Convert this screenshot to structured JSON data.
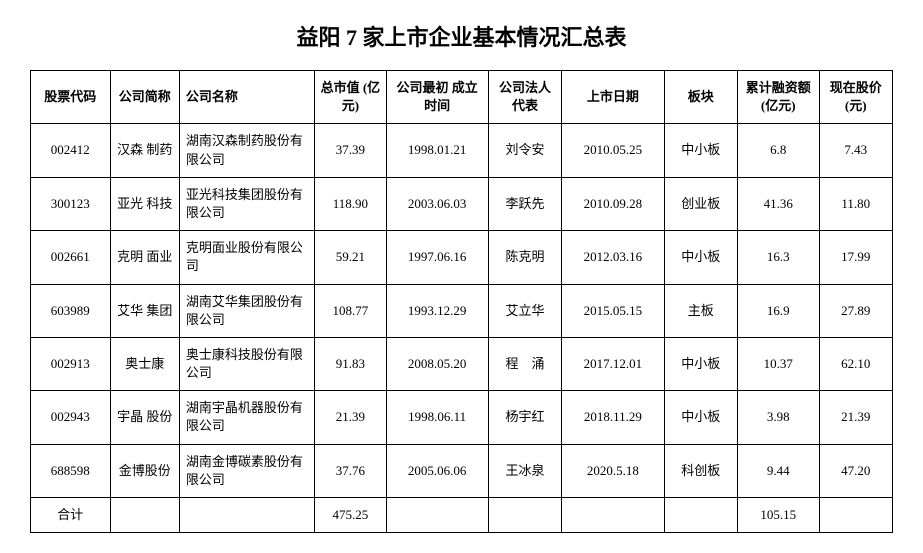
{
  "title": "益阳 7 家上市企业基本情况汇总表",
  "columns": [
    "股票代码",
    "公司简称",
    "公司名称",
    "总市值 (亿元)",
    "公司最初 成立时间",
    "公司法人 代表",
    "上市日期",
    "板块",
    "累计融资额 (亿元)",
    "现在股价 (元)"
  ],
  "rows": [
    [
      "002412",
      "汉森 制药",
      "湖南汉森制药股份有限公司",
      "37.39",
      "1998.01.21",
      "刘令安",
      "2010.05.25",
      "中小板",
      "6.8",
      "7.43"
    ],
    [
      "300123",
      "亚光 科技",
      "亚光科技集团股份有限公司",
      "118.90",
      "2003.06.03",
      "李跃先",
      "2010.09.28",
      "创业板",
      "41.36",
      "11.80"
    ],
    [
      "002661",
      "克明 面业",
      "克明面业股份有限公司",
      "59.21",
      "1997.06.16",
      "陈克明",
      "2012.03.16",
      "中小板",
      "16.3",
      "17.99"
    ],
    [
      "603989",
      "艾华 集团",
      "湖南艾华集团股份有限公司",
      "108.77",
      "1993.12.29",
      "艾立华",
      "2015.05.15",
      "主板",
      "16.9",
      "27.89"
    ],
    [
      "002913",
      "奥士康",
      "奥士康科技股份有限公司",
      "91.83",
      "2008.05.20",
      "程　涌",
      "2017.12.01",
      "中小板",
      "10.37",
      "62.10"
    ],
    [
      "002943",
      "宇晶 股份",
      "湖南宇晶机器股份有限公司",
      "21.39",
      "1998.06.11",
      "杨宇红",
      "2018.11.29",
      "中小板",
      "3.98",
      "21.39"
    ],
    [
      "688598",
      "金博股份",
      "湖南金博碳素股份有限公司",
      "37.76",
      "2005.06.06",
      "王冰泉",
      "2020.5.18",
      "科创板",
      "9.44",
      "47.20"
    ]
  ],
  "total_label": "合计",
  "total_cap": "475.25",
  "total_fin": "105.15"
}
